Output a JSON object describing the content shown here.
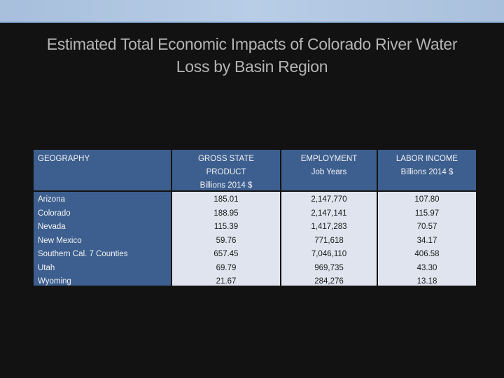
{
  "slide": {
    "title_line1": "Estimated Total Economic Impacts of Colorado River Water",
    "title_line2": "Loss by Basin Region"
  },
  "table": {
    "headers": {
      "geography": "GEOGRAPHY",
      "gsp": [
        "GROSS STATE",
        "PRODUCT",
        "Billions 2014 $"
      ],
      "employment": [
        "EMPLOYMENT",
        "Job Years"
      ],
      "labor_income": [
        "LABOR INCOME",
        "Billions 2014 $"
      ]
    },
    "rows": [
      {
        "geography": "Arizona",
        "gsp": "185.01",
        "employment": "2,147,770",
        "labor_income": "107.80"
      },
      {
        "geography": "Colorado",
        "gsp": "188.95",
        "employment": "2,147,141",
        "labor_income": "115.97"
      },
      {
        "geography": "Nevada",
        "gsp": "115.39",
        "employment": "1,417,283",
        "labor_income": "70.57"
      },
      {
        "geography": "New Mexico",
        "gsp": "59.76",
        "employment": "771,618",
        "labor_income": "34.17"
      },
      {
        "geography": "Southern Cal. 7 Counties",
        "gsp": "657.45",
        "employment": "7,046,110",
        "labor_income": "406.58"
      },
      {
        "geography": "Utah",
        "gsp": "69.79",
        "employment": "969,735",
        "labor_income": "43.30"
      },
      {
        "geography": "Wyoming",
        "gsp": "21.67",
        "employment": "284,276",
        "labor_income": "13.18"
      }
    ]
  }
}
